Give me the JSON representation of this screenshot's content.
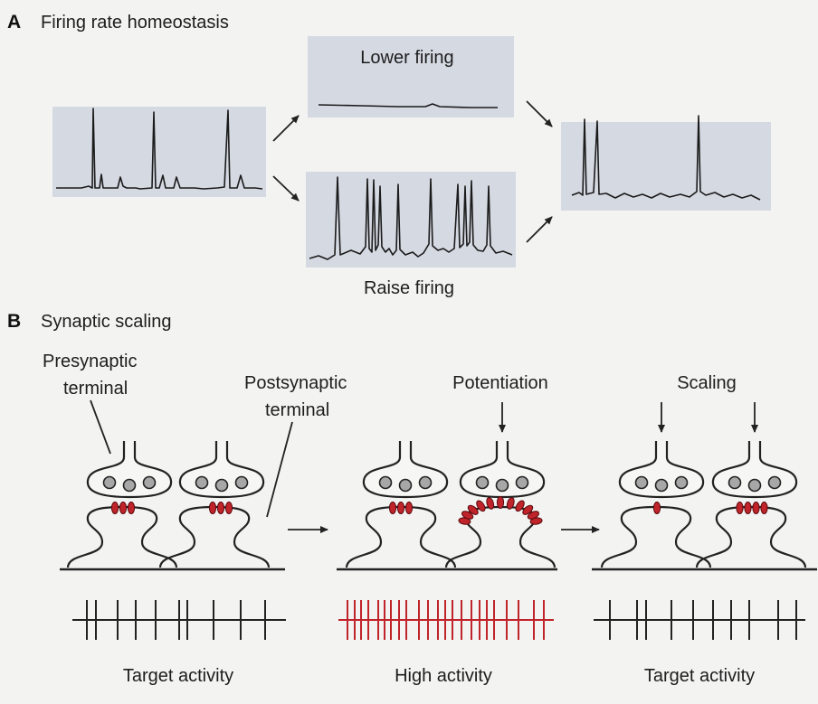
{
  "panel_a": {
    "letter": "A",
    "title": "Firing rate homeostasis",
    "lower_label": "Lower firing",
    "raise_label": "Raise firing"
  },
  "panel_b": {
    "letter": "B",
    "title": "Synaptic scaling",
    "presynaptic_label_1": "Presynaptic",
    "presynaptic_label_2": "terminal",
    "postsynaptic_label_1": "Postsynaptic",
    "postsynaptic_label_2": "terminal",
    "potentiation_label": "Potentiation",
    "scaling_label": "Scaling",
    "caption_left": "Target activity",
    "caption_middle": "High activity",
    "caption_right": "Target activity"
  },
  "colors": {
    "trace_box": "#d5d9e2",
    "receptor": "#c0242a",
    "high_activity_raster": "#c0242a",
    "ink": "#1d1d1d"
  }
}
